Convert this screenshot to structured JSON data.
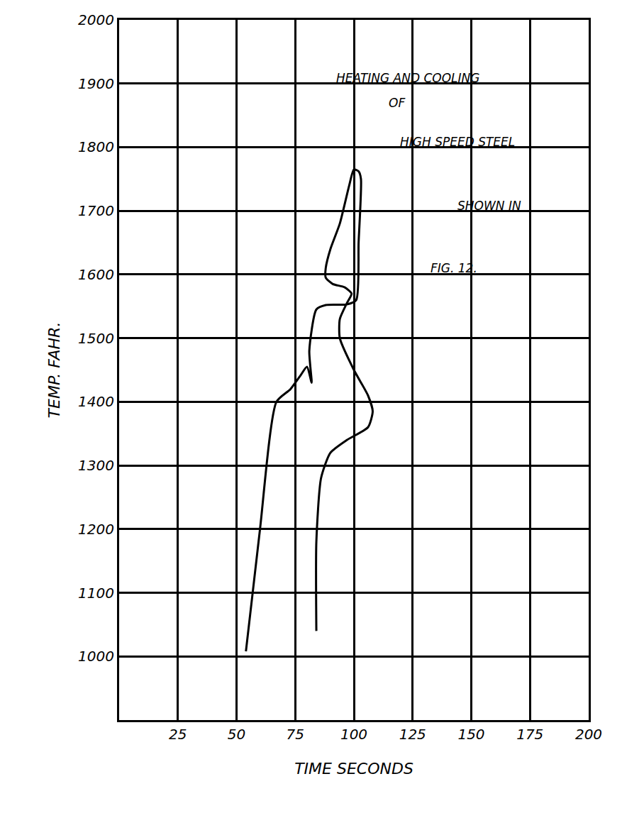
{
  "chart_data": {
    "type": "line",
    "annotations": [
      "HEATING AND COOLING",
      "OF",
      "HIGH SPEED STEEL",
      "SHOWN IN",
      "FIG. 12."
    ],
    "x_label": "TIME SECONDS",
    "y_label": "TEMP. FAHR.",
    "x": [
      54,
      60,
      67,
      73,
      77,
      80,
      82,
      81,
      84,
      88,
      97,
      101,
      102,
      103,
      102,
      100,
      98,
      94,
      90,
      88,
      88,
      91,
      96,
      99,
      97,
      94,
      94,
      100,
      106,
      108,
      106,
      97,
      90,
      86,
      84,
      84
    ],
    "values": [
      1008,
      1200,
      1400,
      1420,
      1440,
      1455,
      1430,
      1480,
      1545,
      1552,
      1553,
      1560,
      1650,
      1750,
      1762,
      1765,
      1740,
      1680,
      1640,
      1610,
      1595,
      1585,
      1580,
      1570,
      1555,
      1530,
      1500,
      1450,
      1410,
      1385,
      1360,
      1340,
      1320,
      1280,
      1180,
      1040
    ],
    "color": "#000000",
    "xlim": [
      0,
      200
    ],
    "xticks": [
      25,
      50,
      75,
      100,
      125,
      150,
      175,
      200
    ],
    "ylim": [
      900,
      2000
    ],
    "yticks": [
      1000,
      1100,
      1200,
      1300,
      1400,
      1500,
      1600,
      1700,
      1800,
      1900,
      2000
    ],
    "grid": true
  }
}
